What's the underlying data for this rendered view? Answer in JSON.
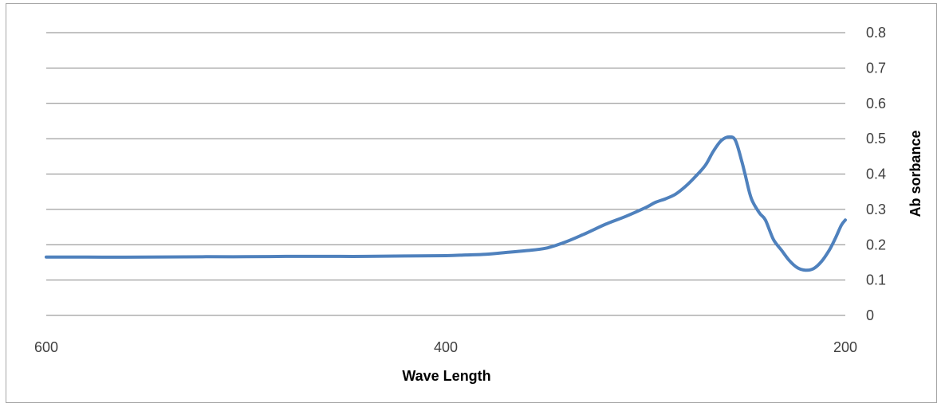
{
  "chart_data": {
    "type": "line",
    "title": "",
    "xlabel": "Wave Length",
    "ylabel": "Ab sorbance",
    "xlim": [
      600,
      200
    ],
    "x_reversed": true,
    "ylim": [
      0,
      0.8
    ],
    "y_axis_position": "right",
    "grid": "horizontal",
    "legend": "none",
    "x_ticks": [
      "600",
      "400",
      "200"
    ],
    "y_ticks": [
      "0",
      "0.1",
      "0.2",
      "0.3",
      "0.4",
      "0.5",
      "0.6",
      "0.7",
      "0.8"
    ],
    "series": [
      {
        "color": "#4f81bd",
        "x": [
          600,
          580,
          550,
          520,
          500,
          480,
          460,
          440,
          420,
          400,
          390,
          380,
          370,
          360,
          350,
          340,
          330,
          320,
          310,
          300,
          295,
          290,
          285,
          280,
          275,
          270,
          266,
          262,
          258,
          255,
          252,
          250,
          247,
          243,
          240,
          236,
          232,
          228,
          224,
          220,
          216,
          212,
          208,
          205,
          202,
          200
        ],
        "y": [
          0.165,
          0.165,
          0.165,
          0.166,
          0.166,
          0.167,
          0.167,
          0.167,
          0.168,
          0.169,
          0.171,
          0.173,
          0.178,
          0.183,
          0.19,
          0.208,
          0.232,
          0.258,
          0.28,
          0.305,
          0.32,
          0.33,
          0.343,
          0.365,
          0.393,
          0.425,
          0.465,
          0.495,
          0.505,
          0.495,
          0.44,
          0.395,
          0.33,
          0.29,
          0.27,
          0.215,
          0.185,
          0.155,
          0.135,
          0.128,
          0.132,
          0.152,
          0.185,
          0.218,
          0.255,
          0.27
        ]
      }
    ]
  }
}
